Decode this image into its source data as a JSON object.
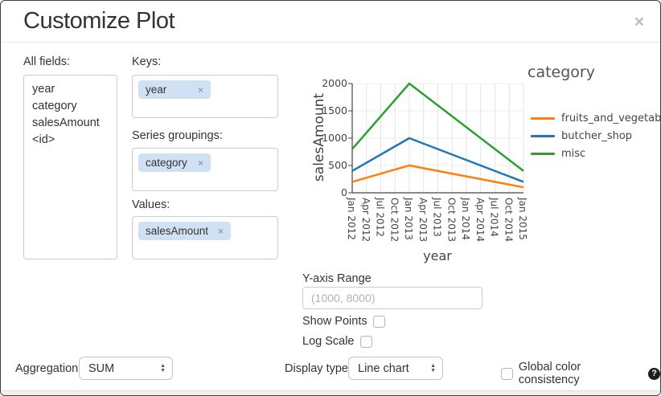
{
  "dialog": {
    "title": "Customize Plot"
  },
  "icons": {
    "close": "×",
    "chip_remove": "×",
    "help": "?",
    "arrow_up": "▲",
    "arrow_down": "▼"
  },
  "fields_panel": {
    "label": "All fields:",
    "items": [
      "year",
      "category",
      "salesAmount",
      "<id>"
    ]
  },
  "keys": {
    "label": "Keys:",
    "chips": [
      "year"
    ]
  },
  "series_groupings": {
    "label": "Series groupings:",
    "chips": [
      "category"
    ]
  },
  "values": {
    "label": "Values:",
    "chips": [
      "salesAmount"
    ]
  },
  "chart_data": {
    "type": "line",
    "xlabel": "year",
    "ylabel": "salesAmount",
    "legend_title": "category",
    "legend_position": "right",
    "grid": true,
    "ylim": [
      0,
      2000
    ],
    "y_ticks": [
      0,
      500,
      1000,
      1500,
      2000
    ],
    "x_tick_labels": [
      "Jan 2012",
      "Apr 2012",
      "Jul 2012",
      "Oct 2012",
      "Jan 2013",
      "Apr 2013",
      "Jul 2013",
      "Oct 2013",
      "Jan 2014",
      "Apr 2014",
      "Jul 2014",
      "Oct 2014",
      "Jan 2015"
    ],
    "x": [
      "Jan 2012",
      "Jan 2013",
      "Jan 2015"
    ],
    "series": [
      {
        "name": "fruits_and_vegetables",
        "color": "#ff7f0e",
        "values": [
          200,
          500,
          100
        ]
      },
      {
        "name": "butcher_shop",
        "color": "#1f77b4",
        "values": [
          400,
          1000,
          200
        ]
      },
      {
        "name": "misc",
        "color": "#2ca02c",
        "values": [
          800,
          2000,
          400
        ]
      }
    ]
  },
  "y_axis_range": {
    "label": "Y-axis Range",
    "value": "",
    "placeholder": "(1000, 8000)"
  },
  "show_points": {
    "label": "Show Points",
    "checked": false
  },
  "log_scale": {
    "label": "Log Scale",
    "checked": false
  },
  "footer": {
    "aggregation_label": "Aggregation:",
    "aggregation_value": "SUM",
    "display_type_label": "Display type:",
    "display_type_value": "Line chart",
    "global_color_label": "Global color consistency"
  }
}
